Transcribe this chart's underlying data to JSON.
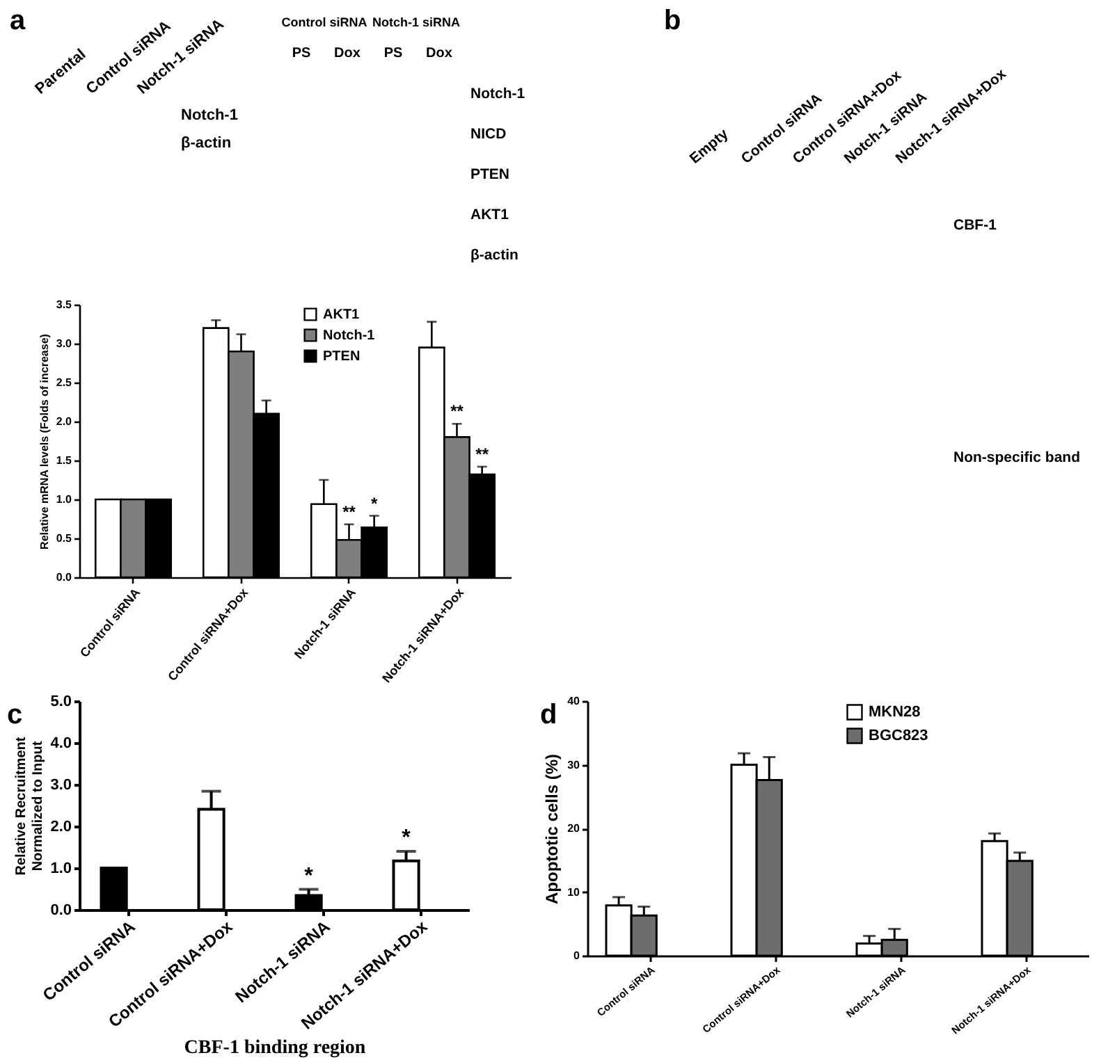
{
  "chart_data": [
    {
      "type": "other",
      "title": "a",
      "categories": [
        "Parental",
        "Control siRNA",
        "Notch-1 siRNA"
      ],
      "annotations": [
        "Notch-1",
        "β-actin"
      ]
    },
    {
      "type": "other",
      "categories": [
        "PS",
        "Dox",
        "PS",
        "Dox"
      ],
      "annotations": [
        "Control siRNA",
        "Notch-1 siRNA",
        "Notch-1",
        "NICD",
        "PTEN",
        "AKT1",
        "β-actin"
      ]
    },
    {
      "type": "other",
      "title": "b",
      "categories": [
        "Empty",
        "Control siRNA",
        "Control siRNA+Dox",
        "Notch-1 siRNA",
        "Notch-1 siRNA+Dox"
      ],
      "annotations": [
        "CBF-1",
        "Non-specific band"
      ]
    },
    {
      "type": "bar",
      "categories": [
        "Control siRNA",
        "Control siRNA+Dox",
        "Notch-1 siRNA",
        "Notch-1 siRNA+Dox"
      ],
      "series": [
        {
          "name": "AKT1",
          "color": "#ffffff",
          "values": [
            1,
            3.2,
            0.94,
            2.95
          ],
          "errors": [
            null,
            [
              3.2,
              3.3
            ],
            [
              0.94,
              1.25
            ],
            [
              2.95,
              3.28
            ]
          ]
        },
        {
          "name": "Notch-1",
          "color": "#7f7f7f",
          "values": [
            1,
            2.9,
            0.48,
            1.8
          ],
          "errors": [
            null,
            [
              2.9,
              3.12
            ],
            [
              0.48,
              0.68
            ],
            [
              1.8,
              1.97
            ]
          ]
        },
        {
          "name": "PTEN",
          "color": "#000000",
          "values": [
            1,
            2.1,
            0.64,
            1.32
          ],
          "errors": [
            null,
            [
              2.1,
              2.27
            ],
            [
              0.64,
              0.79
            ],
            [
              1.32,
              1.42
            ]
          ]
        }
      ],
      "ylabel": "Relative mRNA levels (Folds of increase)",
      "ylim": [
        0,
        3.5
      ],
      "yticks": [
        {
          "value": 0,
          "label": "0.0"
        },
        {
          "value": 0.5,
          "label": "0.5"
        },
        {
          "value": 1,
          "label": "1.0"
        },
        {
          "value": 1.5,
          "label": "1.5"
        },
        {
          "value": 2,
          "label": "2.0"
        },
        {
          "value": 2.5,
          "label": "2.5"
        },
        {
          "value": 3,
          "label": "3.0"
        },
        {
          "value": 3.5,
          "label": "3.5"
        }
      ],
      "legend": "top right",
      "annotations": [
        {
          "text": "**",
          "x": "Notch-1 siRNA",
          "y": 0.68
        },
        {
          "text": "*",
          "y": 0.79
        },
        {
          "text": "**",
          "x": "Notch-1 siRNA+Dox",
          "y": 1.97
        },
        {
          "text": "**",
          "y": 1.42
        }
      ]
    },
    {
      "type": "bar",
      "title": "c",
      "categories": [
        "Control siRNA",
        "Control siRNA+Dox",
        "Notch-1 siRNA",
        "Notch-1 siRNA+Dox"
      ],
      "values": [
        1.0,
        2.41,
        0.34,
        1.17
      ],
      "colors": [
        "#000000",
        "#ffffff",
        "#000000",
        "#ffffff"
      ],
      "errors": [
        null,
        [
          2.41,
          2.84
        ],
        [
          0.34,
          0.49
        ],
        [
          1.17,
          1.4
        ]
      ],
      "xlabel": "CBF-1 binding region",
      "ylabel": "Relative Recruitment\nNormalized to Input",
      "ylim": [
        0,
        5
      ],
      "yticks": [
        {
          "value": 0,
          "label": "0.0"
        },
        {
          "value": 1,
          "label": "1.0"
        },
        {
          "value": 2,
          "label": "2.0"
        },
        {
          "value": 3,
          "label": "3.0"
        },
        {
          "value": 4,
          "label": "4.0"
        },
        {
          "value": 5,
          "label": "5.0"
        }
      ],
      "annotations": [
        {
          "text": "*",
          "x": "Notch-1 siRNA",
          "y": 0.49
        },
        {
          "text": "*",
          "x": "Notch-1 siRNA+Dox",
          "y": 1.4
        }
      ]
    },
    {
      "type": "bar",
      "title": "d",
      "categories": [
        "Control siRNA",
        "Control siRNA+Dox",
        "Notch-1 siRNA",
        "Notch-1 siRNA+Dox"
      ],
      "series": [
        {
          "name": "MKN28",
          "color": "#ffffff",
          "values": [
            7.9,
            30.0,
            1.9,
            18.0
          ],
          "errors": [
            [
              7.9,
              9.2
            ],
            [
              30.0,
              31.8
            ],
            [
              1.9,
              3.1
            ],
            [
              18.0,
              19.2
            ]
          ]
        },
        {
          "name": "BGC823",
          "color": "#6d6d6d",
          "values": [
            6.3,
            27.6,
            2.5,
            14.9
          ],
          "errors": [
            [
              6.3,
              7.7
            ],
            [
              27.6,
              31.2
            ],
            [
              2.5,
              4.2
            ],
            [
              14.9,
              16.2
            ]
          ]
        }
      ],
      "ylabel": "Apoptotic cells (%)",
      "ylim": [
        0,
        40
      ],
      "yticks": [
        0,
        10,
        20,
        30,
        40
      ],
      "legend": "top right"
    }
  ]
}
